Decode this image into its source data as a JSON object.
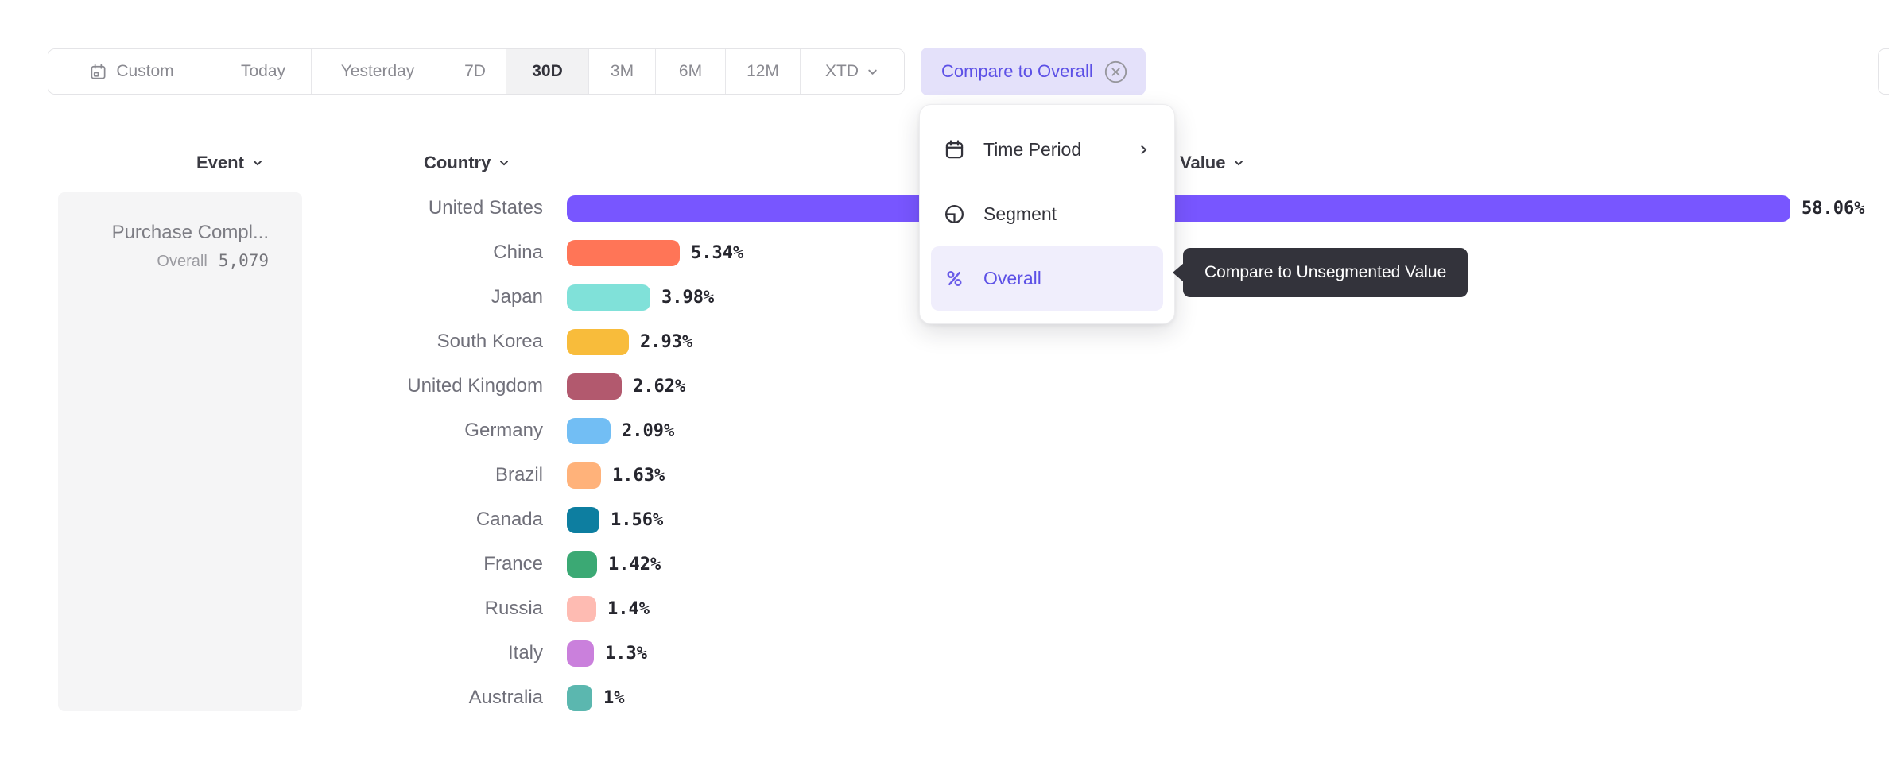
{
  "toolbar": {
    "buttons": [
      {
        "label": "Custom",
        "icon": "calendar-icon"
      },
      {
        "label": "Today"
      },
      {
        "label": "Yesterday"
      },
      {
        "label": "7D"
      },
      {
        "label": "30D"
      },
      {
        "label": "3M"
      },
      {
        "label": "6M"
      },
      {
        "label": "12M"
      },
      {
        "label": "XTD",
        "icon": "chevron-down-icon"
      }
    ],
    "selected": "30D",
    "compare_pill": {
      "label": "Compare to Overall",
      "icon": "close-circle-icon"
    }
  },
  "dropdown_menu": {
    "items": [
      {
        "label": "Time Period",
        "icon": "calendar-icon",
        "trailing_icon": "chevron-right-icon"
      },
      {
        "label": "Segment",
        "icon": "segment-icon"
      },
      {
        "label": "Overall",
        "icon": "percent-icon",
        "selected": true
      }
    ]
  },
  "tooltip": {
    "text": "Compare to Unsegmented Value"
  },
  "columns": {
    "event": "Event",
    "country": "Country",
    "value": "Value"
  },
  "event_panel": {
    "title": "Purchase Compl...",
    "overall_label": "Overall",
    "overall_value": "5,079"
  },
  "chart_data": {
    "type": "bar",
    "orientation": "horizontal",
    "title": "",
    "xlabel": "Value (%)",
    "ylabel": "Country",
    "xlim": [
      0,
      60
    ],
    "categories": [
      "United States",
      "China",
      "Japan",
      "South Korea",
      "United Kingdom",
      "Germany",
      "Brazil",
      "Canada",
      "France",
      "Russia",
      "Italy",
      "Australia"
    ],
    "values": [
      58.06,
      5.34,
      3.98,
      2.93,
      2.62,
      2.09,
      1.63,
      1.56,
      1.42,
      1.4,
      1.3,
      1
    ],
    "value_labels": [
      "58.06%",
      "5.34%",
      "3.98%",
      "2.93%",
      "2.62%",
      "2.09%",
      "1.63%",
      "1.56%",
      "1.42%",
      "1.4%",
      "1.3%",
      "1%"
    ],
    "colors": [
      "#7856FF",
      "#FF7557",
      "#80E1D9",
      "#F8BC3B",
      "#B2596E",
      "#72BEF4",
      "#FFB27A",
      "#0D7EA0",
      "#3BA974",
      "#FEBBB2",
      "#CA80DC",
      "#5BB7AF"
    ]
  },
  "colors": {
    "accent": "#5C50E6",
    "pill_bg": "#E4E1FA",
    "selected_button_bg": "#F2F2F3",
    "tooltip_bg": "#33333B",
    "panel_bg": "#F5F5F6",
    "border": "#E4E4E7"
  }
}
